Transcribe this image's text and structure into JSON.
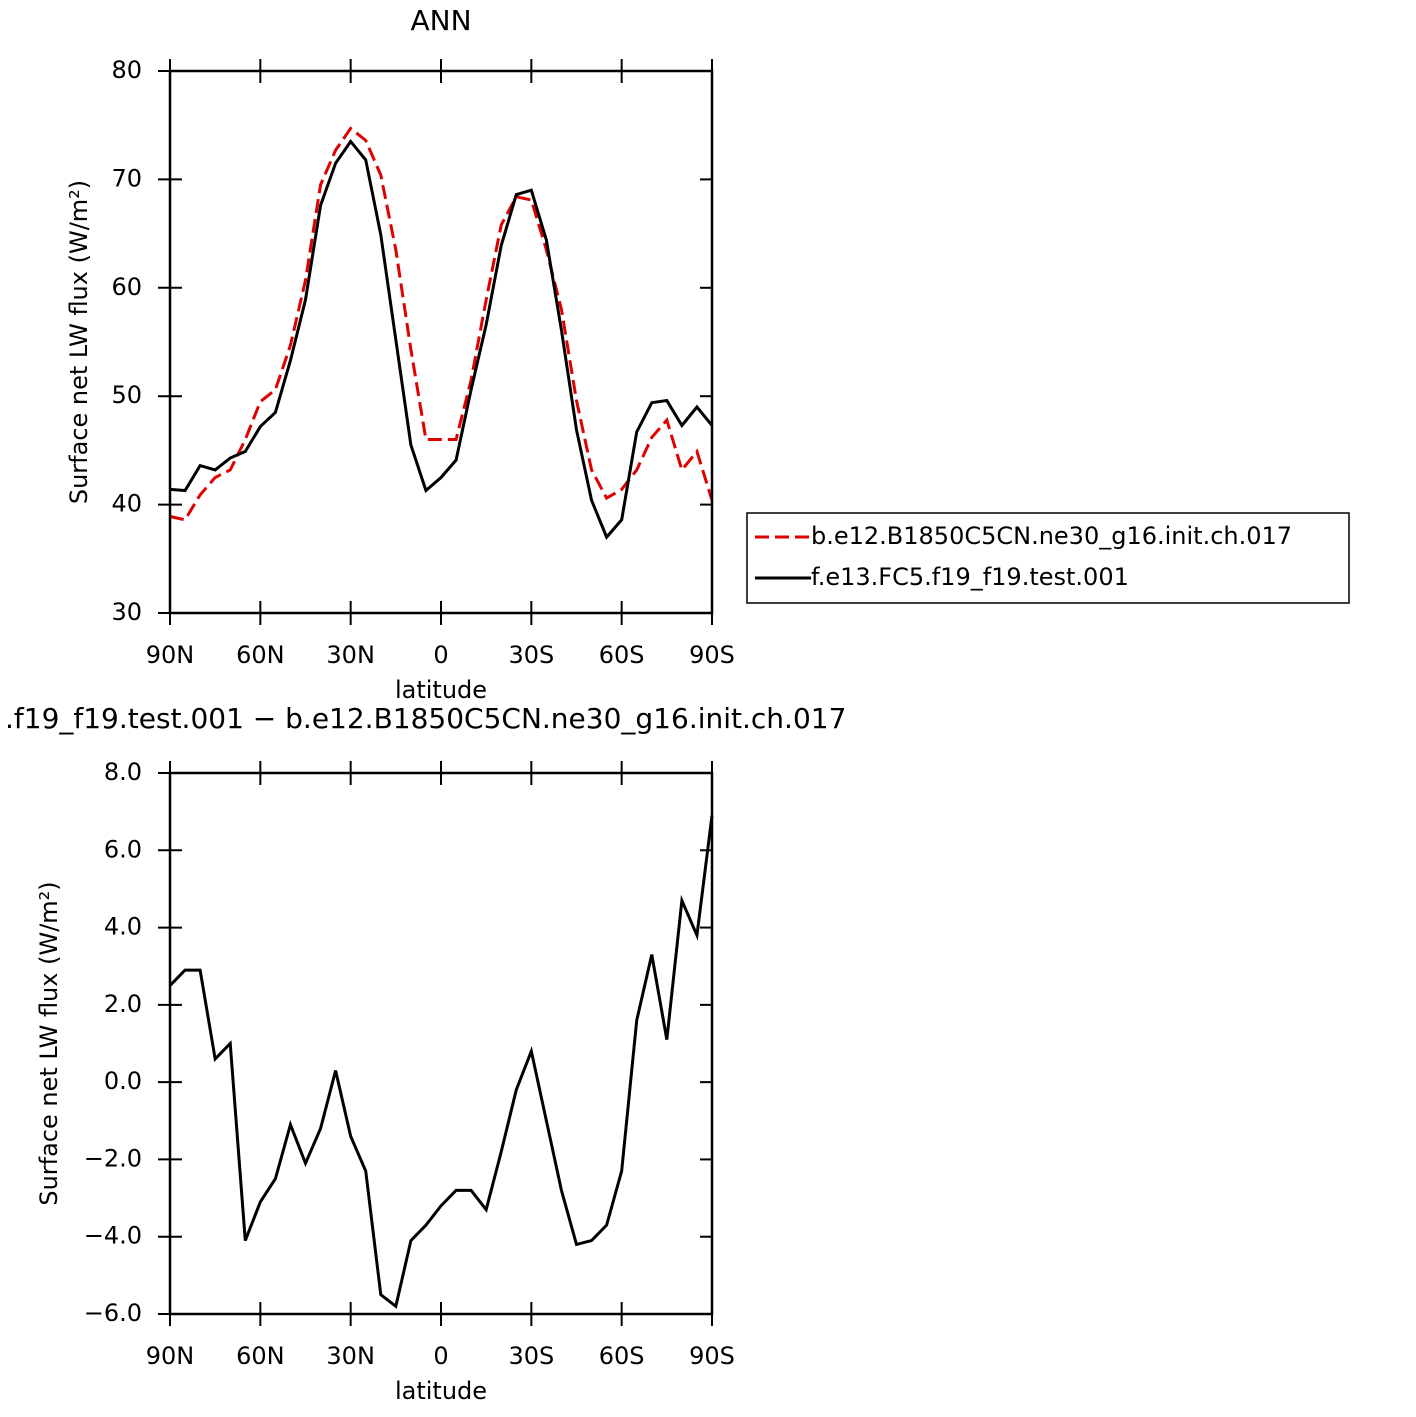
{
  "chart_data": [
    {
      "type": "line",
      "title": "ANN",
      "xlabel": "latitude",
      "ylabel": "Surface net LW flux (W/m²)",
      "x": [
        90,
        85,
        80,
        75,
        70,
        65,
        60,
        55,
        50,
        45,
        40,
        35,
        30,
        25,
        20,
        15,
        10,
        5,
        0,
        -5,
        -10,
        -15,
        -20,
        -25,
        -30,
        -35,
        -40,
        -45,
        -50,
        -55,
        -60,
        -65,
        -70,
        -75,
        -80,
        -85,
        -90
      ],
      "series": [
        {
          "name": "b.e12.B1850C5CN.ne30_g16.init.ch.017",
          "color": "#e00000",
          "linestyle": "dashed",
          "values": [
            38.9,
            38.6,
            40.9,
            42.5,
            43.2,
            46.0,
            49.5,
            50.6,
            54.7,
            60.7,
            69.5,
            72.7,
            74.7,
            73.6,
            70.4,
            63.5,
            54.3,
            46.0,
            46.0,
            46.0,
            51.5,
            58.9,
            65.8,
            68.4,
            68.1,
            63.5,
            58.0,
            49.6,
            43.2,
            40.6,
            41.4,
            43.2,
            46.2,
            47.8,
            43.2,
            44.9,
            40.4
          ]
        },
        {
          "name": "f.e13.FC5.f19_f19.test.001",
          "color": "#000000",
          "linestyle": "solid",
          "values": [
            41.4,
            41.3,
            43.6,
            43.2,
            44.3,
            44.9,
            47.2,
            48.5,
            53.3,
            58.9,
            67.6,
            71.5,
            73.5,
            71.8,
            64.9,
            55.2,
            45.5,
            41.3,
            42.5,
            44.1,
            50.6,
            56.6,
            63.9,
            68.6,
            69.0,
            64.4,
            56.1,
            46.9,
            40.4,
            37.0,
            38.6,
            46.7,
            49.4,
            49.6,
            47.3,
            49.0,
            47.3
          ]
        }
      ],
      "xlim": [
        90,
        -90
      ],
      "ylim": [
        30,
        80
      ],
      "xticks": [
        {
          "value": 90,
          "label": "90N"
        },
        {
          "value": 60,
          "label": "60N"
        },
        {
          "value": 30,
          "label": "30N"
        },
        0,
        {
          "value": -30,
          "label": "30S"
        },
        {
          "value": -60,
          "label": "60S"
        },
        {
          "value": -90,
          "label": "90S"
        }
      ],
      "yticks": [
        30,
        40,
        50,
        60,
        70,
        80
      ],
      "legend": "right"
    },
    {
      "type": "line",
      "title": ".f19_f19.test.001 − b.e12.B1850C5CN.ne30_g16.init.ch.017",
      "xlabel": "latitude",
      "ylabel": "Surface net LW flux (W/m²)",
      "x": [
        90,
        85,
        80,
        75,
        70,
        65,
        60,
        55,
        50,
        45,
        40,
        35,
        30,
        25,
        20,
        15,
        10,
        5,
        0,
        -5,
        -10,
        -15,
        -20,
        -25,
        -30,
        -35,
        -40,
        -45,
        -50,
        -55,
        -60,
        -65,
        -70,
        -75,
        -80,
        -85,
        -90
      ],
      "series": [
        {
          "color": "#000000",
          "linestyle": "solid",
          "values": [
            2.5,
            2.9,
            2.9,
            0.6,
            1.0,
            -4.1,
            -3.1,
            -2.5,
            -1.1,
            -2.1,
            -1.2,
            0.3,
            -1.4,
            -2.3,
            -5.5,
            -5.8,
            -4.1,
            -3.7,
            -3.2,
            -2.8,
            -2.8,
            -3.3,
            -1.8,
            -0.2,
            0.8,
            -1.0,
            -2.8,
            -4.2,
            -4.1,
            -3.7,
            -2.3,
            1.6,
            3.3,
            1.1,
            4.7,
            3.8,
            6.9
          ]
        }
      ],
      "xlim": [
        90,
        -90
      ],
      "ylim": [
        -6,
        8
      ],
      "xticks": [
        {
          "value": 90,
          "label": "90N"
        },
        {
          "value": 60,
          "label": "60N"
        },
        {
          "value": 30,
          "label": "30N"
        },
        0,
        {
          "value": -30,
          "label": "30S"
        },
        {
          "value": -60,
          "label": "60S"
        },
        {
          "value": -90,
          "label": "90S"
        }
      ],
      "yticks": [
        {
          "value": -6,
          "label": "−6.0"
        },
        {
          "value": -4,
          "label": "−4.0"
        },
        {
          "value": -2,
          "label": "−2.0"
        },
        {
          "value": 0,
          "label": "0.0"
        },
        {
          "value": 2,
          "label": "2.0"
        },
        {
          "value": 4,
          "label": "4.0"
        },
        {
          "value": 6,
          "label": "6.0"
        },
        {
          "value": 8,
          "label": "8.0"
        }
      ]
    }
  ]
}
